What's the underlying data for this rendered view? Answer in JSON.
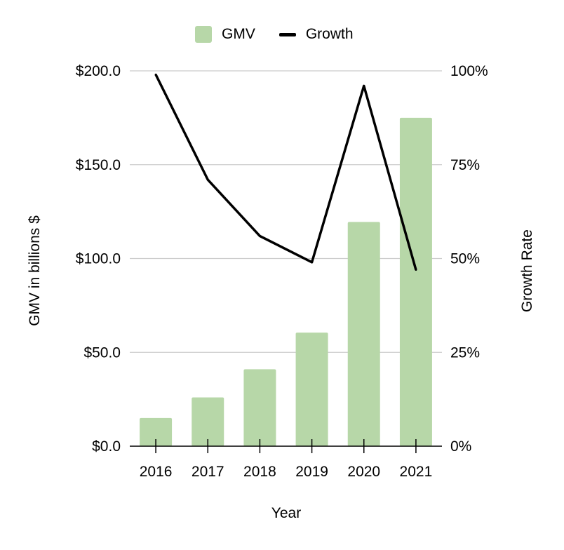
{
  "legend": {
    "bar_label": "GMV",
    "line_label": "Growth"
  },
  "colors": {
    "bar": "#b7d7a8",
    "line": "#000000",
    "grid": "#cccccc",
    "axis": "#000000"
  },
  "chart_data": {
    "type": "bar+line",
    "categories": [
      "2016",
      "2017",
      "2018",
      "2019",
      "2020",
      "2021"
    ],
    "series": [
      {
        "name": "GMV",
        "type": "bar",
        "axis": "left",
        "values": [
          15,
          26,
          41,
          60.5,
          119.5,
          175
        ]
      },
      {
        "name": "Growth",
        "type": "line",
        "axis": "right",
        "values": [
          99,
          71,
          56,
          49,
          96,
          47
        ]
      }
    ],
    "xlabel": "Year",
    "ylabel": "GMV in billions $",
    "y2label": "Growth Rate",
    "ylim": [
      0,
      200
    ],
    "y2lim": [
      0,
      100
    ],
    "yticks": [
      0,
      50,
      100,
      150,
      200
    ],
    "ytick_labels": [
      "$0.0",
      "$50.0",
      "$100.0",
      "$150.0",
      "$200.0"
    ],
    "y2ticks": [
      0,
      25,
      50,
      75,
      100
    ],
    "y2tick_labels": [
      "0%",
      "25%",
      "50%",
      "75%",
      "100%"
    ],
    "grid": true,
    "legend_position": "top"
  }
}
